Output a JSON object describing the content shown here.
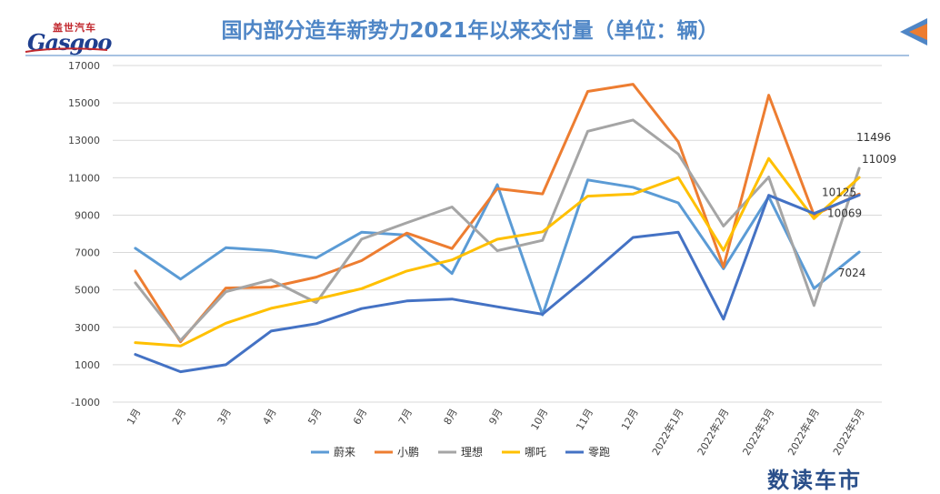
{
  "logo": {
    "cn": "盖世汽车",
    "en": "Gasgoo"
  },
  "brand": "数读车市",
  "chart_data": {
    "type": "line",
    "title": "国内部分造车新势力2021年以来交付量（单位：辆）",
    "xlabel": "",
    "ylabel": "",
    "ylim": [
      -1000,
      17000
    ],
    "yticks": [
      -1000,
      1000,
      3000,
      5000,
      7000,
      9000,
      11000,
      13000,
      15000,
      17000
    ],
    "categories": [
      "1月",
      "2月",
      "3月",
      "4月",
      "5月",
      "6月",
      "7月",
      "8月",
      "9月",
      "10月",
      "11月",
      "12月",
      "2022年1月",
      "2022年2月",
      "2022年3月",
      "2022年4月",
      "2022年5月"
    ],
    "grid": true,
    "legend_position": "bottom",
    "series": [
      {
        "name": "蔚来",
        "color": "#5b9bd5",
        "values": [
          7225,
          5578,
          7257,
          7102,
          6711,
          8083,
          7931,
          5880,
          10628,
          3667,
          10878,
          10489,
          9652,
          6131,
          9985,
          5074,
          7024
        ]
      },
      {
        "name": "小鹏",
        "color": "#ed7d31",
        "values": [
          6015,
          2223,
          5102,
          5147,
          5686,
          6565,
          8040,
          7214,
          10412,
          10138,
          15613,
          16000,
          12922,
          6225,
          15414,
          9002,
          10125
        ]
      },
      {
        "name": "理想",
        "color": "#a5a5a5",
        "values": [
          5379,
          2300,
          4900,
          5539,
          4323,
          7713,
          8589,
          9433,
          7094,
          7649,
          13485,
          14087,
          12268,
          8414,
          11034,
          4167,
          11496
        ]
      },
      {
        "name": "哪吒",
        "color": "#ffc000",
        "values": [
          2180,
          2000,
          3220,
          4016,
          4508,
          5066,
          6011,
          6604,
          7710,
          8107,
          10013,
          10127,
          11009,
          7117,
          12026,
          8813,
          11009
        ]
      },
      {
        "name": "零跑",
        "color": "#4472c4",
        "values": [
          1551,
          625,
          1000,
          2798,
          3195,
          4000,
          4410,
          4512,
          4098,
          3700,
          5700,
          7807,
          8085,
          3435,
          10059,
          9087,
          10069
        ]
      }
    ],
    "annotations": [
      {
        "text": "11496",
        "series": "理想",
        "index": 16
      },
      {
        "text": "10125",
        "series": "小鹏",
        "index": 16
      },
      {
        "text": "11009",
        "series": "哪吒",
        "index": 16
      },
      {
        "text": "10069",
        "series": "零跑",
        "index": 16
      },
      {
        "text": "7024",
        "series": "蔚来",
        "index": 16
      }
    ]
  }
}
